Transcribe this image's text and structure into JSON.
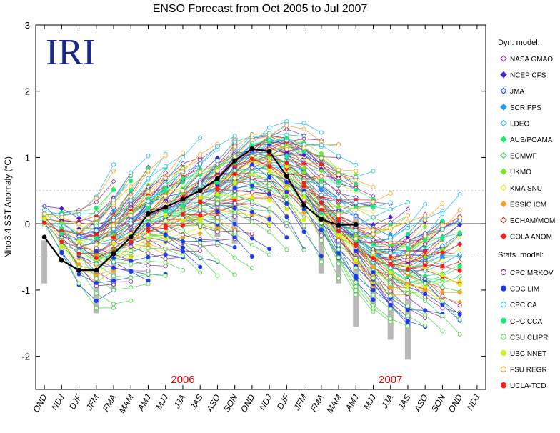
{
  "chart_data": {
    "type": "line",
    "title": "ENSO Forecast from Oct 2005 to Jul 2007",
    "logo_text": "IRI",
    "ylabel": "Nino3.4 SST Anomaly (°C)",
    "ylim": [
      -2.5,
      3
    ],
    "yticks": [
      3,
      2,
      1,
      0,
      -1,
      -2
    ],
    "xlabels": [
      "OND",
      "NDJ",
      "DJF",
      "JFM",
      "FMA",
      "MAM",
      "AMJ",
      "MJJ",
      "JJA",
      "JAS",
      "ASO",
      "SON",
      "OND",
      "NDJ",
      "DJF",
      "JFM",
      "FMA",
      "MAM",
      "AMJ",
      "MJJ",
      "JJA",
      "JAS",
      "ASO",
      "SON",
      "OND",
      "NDJ"
    ],
    "year_labels": [
      {
        "text": "2006",
        "at_index": 8
      },
      {
        "text": "2007",
        "at_index": 20
      }
    ],
    "reference_lines": [
      0.5,
      -0.5
    ],
    "observed": {
      "color": "#000000",
      "values": [
        -0.2,
        -0.55,
        -0.7,
        -0.7,
        -0.45,
        -0.2,
        0.15,
        0.25,
        0.37,
        0.5,
        0.68,
        0.95,
        1.13,
        1.09,
        0.72,
        0.28,
        0.07,
        -0.02,
        -0.01
      ]
    },
    "legend": {
      "dyn_title": "Dyn. model:",
      "stat_title": "Stats. model:",
      "dyn_models": [
        {
          "name": "NASA GMAO",
          "color": "#8e2aa8",
          "marker": "diamond-open"
        },
        {
          "name": "NCEP CFS",
          "color": "#4b1fd6",
          "marker": "diamond"
        },
        {
          "name": "JMA",
          "color": "#1e40ff",
          "marker": "diamond-open"
        },
        {
          "name": "SCRIPPS",
          "color": "#1f9bf5",
          "marker": "diamond"
        },
        {
          "name": "LDEO",
          "color": "#19b8e6",
          "marker": "diamond-open"
        },
        {
          "name": "AUS/POAMA",
          "color": "#1ee86d",
          "marker": "diamond"
        },
        {
          "name": "ECMWF",
          "color": "#2fd65a",
          "marker": "diamond-open"
        },
        {
          "name": "UKMO",
          "color": "#7be81a",
          "marker": "diamond"
        },
        {
          "name": "KMA SNU",
          "color": "#e8e81a",
          "marker": "diamond-open"
        },
        {
          "name": "ESSIC ICM",
          "color": "#f5a013",
          "marker": "diamond"
        },
        {
          "name": "ECHAM/MOM",
          "color": "#c8232a",
          "marker": "diamond-open"
        },
        {
          "name": "COLA ANOM",
          "color": "#ff1a1a",
          "marker": "diamond"
        }
      ],
      "stat_models": [
        {
          "name": "CPC MRKOV",
          "color": "#7a2aa0",
          "marker": "circle-open"
        },
        {
          "name": "CDC LIM",
          "color": "#1a3cf0",
          "marker": "circle"
        },
        {
          "name": "CPC CA",
          "color": "#19b8e6",
          "marker": "circle-open"
        },
        {
          "name": "CPC CCA",
          "color": "#1ee87a",
          "marker": "circle"
        },
        {
          "name": "CSU CLIPR",
          "color": "#3ed63a",
          "marker": "circle-open"
        },
        {
          "name": "UBC NNET",
          "color": "#d6f01a",
          "marker": "circle"
        },
        {
          "name": "FSU REGR",
          "color": "#f5a013",
          "marker": "circle-open"
        },
        {
          "name": "UCLA-TCD",
          "color": "#ff1a1a",
          "marker": "circle"
        }
      ]
    },
    "forecast_runs": [
      {
        "start_index": 0,
        "values": [
          0.1,
          -0.1,
          -0.3,
          -0.35,
          -0.1
        ],
        "spread": [
          0.6,
          -0.9
        ],
        "model_offsets": [
          0.4,
          0.3,
          0.2,
          0.1,
          0.0,
          -0.1,
          -0.2,
          0.3,
          0.15,
          -0.3,
          0.05,
          0.25,
          -0.4,
          -0.5,
          0.5,
          0.35,
          -0.6,
          -0.25,
          0.45,
          -0.15
        ]
      },
      {
        "start_index": 1,
        "values": [
          -0.15,
          -0.3,
          -0.35,
          -0.25,
          -0.05
        ]
      },
      {
        "start_index": 2,
        "values": [
          -0.3,
          -0.35,
          -0.25,
          -0.05,
          0.1
        ]
      },
      {
        "start_index": 3,
        "values": [
          -0.35,
          -0.25,
          -0.1,
          0.05,
          0.15
        ]
      },
      {
        "start_index": 4,
        "values": [
          -0.25,
          -0.1,
          0.05,
          0.15,
          0.25
        ]
      },
      {
        "start_index": 5,
        "values": [
          -0.1,
          0.05,
          0.15,
          0.25,
          0.3
        ]
      },
      {
        "start_index": 6,
        "values": [
          0.05,
          0.15,
          0.25,
          0.3,
          0.35
        ]
      },
      {
        "start_index": 7,
        "values": [
          0.1,
          0.2,
          0.3,
          0.35,
          0.4
        ]
      },
      {
        "start_index": 8,
        "values": [
          0.25,
          0.35,
          0.4,
          0.45,
          0.45
        ]
      },
      {
        "start_index": 9,
        "values": [
          0.4,
          0.5,
          0.6,
          0.6,
          0.55
        ]
      },
      {
        "start_index": 10,
        "values": [
          0.55,
          0.7,
          0.75,
          0.7,
          0.55
        ]
      },
      {
        "start_index": 11,
        "values": [
          0.75,
          0.85,
          0.85,
          0.75,
          0.55
        ]
      },
      {
        "start_index": 12,
        "values": [
          0.95,
          1.0,
          0.9,
          0.7,
          0.45
        ]
      },
      {
        "start_index": 13,
        "values": [
          1.0,
          0.95,
          0.8,
          0.55,
          0.3
        ]
      },
      {
        "start_index": 14,
        "values": [
          0.85,
          0.75,
          0.55,
          0.3,
          0.1
        ]
      },
      {
        "start_index": 15,
        "values": [
          0.55,
          0.35,
          0.15,
          -0.05,
          -0.2
        ]
      },
      {
        "start_index": 16,
        "values": [
          0.15,
          -0.05,
          -0.2,
          -0.35,
          -0.45
        ]
      },
      {
        "start_index": 17,
        "values": [
          -0.15,
          -0.35,
          -0.5,
          -0.6,
          -0.6
        ]
      },
      {
        "start_index": 18,
        "values": [
          -0.35,
          -0.55,
          -0.65,
          -0.65,
          -0.6
        ]
      },
      {
        "start_index": 19,
        "values": [
          -0.5,
          -0.65,
          -0.7,
          -0.65,
          -0.6
        ]
      },
      {
        "start_index": 20,
        "values": [
          -0.55,
          -0.65,
          -0.65,
          -0.6,
          -0.55
        ]
      },
      {
        "start_index": 21,
        "values": [
          -0.6,
          -0.6,
          -0.6,
          -0.55
        ]
      }
    ],
    "spread_bars": [
      {
        "index": 0,
        "low": -0.9,
        "high": -0.25
      },
      {
        "index": 3,
        "low": -1.35,
        "high": -0.7
      },
      {
        "index": 4,
        "low": -1.0,
        "high": -0.5
      },
      {
        "index": 10,
        "low": -0.2,
        "high": 0.5
      },
      {
        "index": 11,
        "low": -0.3,
        "high": 1.3
      },
      {
        "index": 16,
        "low": -0.75,
        "high": 0.4
      },
      {
        "index": 17,
        "low": -0.9,
        "high": 0.1
      },
      {
        "index": 18,
        "low": -1.55,
        "high": 0.1
      },
      {
        "index": 19,
        "low": -1.25,
        "high": -0.4
      },
      {
        "index": 20,
        "low": -1.75,
        "high": -0.7
      },
      {
        "index": 21,
        "low": -2.05,
        "high": -1.0
      }
    ]
  }
}
